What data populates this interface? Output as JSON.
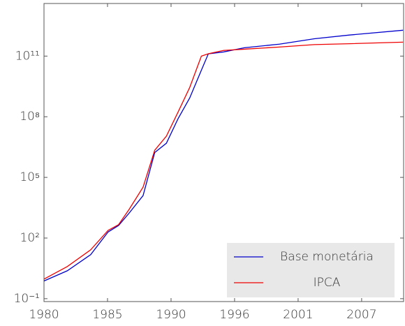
{
  "chart_data": {
    "type": "line",
    "x": [
      1980,
      1982,
      1984,
      1985.5,
      1986.4,
      1987.3,
      1988.5,
      1989.5,
      1990.5,
      1991.5,
      1992.5,
      1993.5,
      1994.1,
      1995.4,
      1997.2,
      2000.2,
      2003.2,
      2006.2,
      2010.8
    ],
    "series": [
      {
        "name": "Base monetária",
        "color": "#0000cc",
        "values": [
          0.75,
          2.4,
          15,
          200,
          420,
          1700,
          12600,
          1700000,
          4900000,
          80000000,
          850000000,
          20000000000,
          130000000000,
          160000000000,
          260000000000,
          390000000000,
          720000000000,
          1100000000000,
          1900000000000
        ]
      },
      {
        "name": "IPCA",
        "color": "#ee0000",
        "values": [
          0.93,
          3.9,
          26,
          240,
          460,
          2600,
          33000,
          2200000,
          11000000,
          170000000,
          2800000000,
          100000000000,
          130000000000,
          190000000000,
          220000000000,
          280000000000,
          370000000000,
          410000000000,
          490000000000
        ]
      }
    ],
    "xlim": [
      1980,
      2010.85
    ],
    "xticks": [
      {
        "value": 1980,
        "label": "1980"
      },
      {
        "value": 1985.45,
        "label": "1985"
      },
      {
        "value": 1990.9,
        "label": "1990"
      },
      {
        "value": 1996.35,
        "label": "1996"
      },
      {
        "value": 2001.8,
        "label": "2001"
      },
      {
        "value": 2007.25,
        "label": "2007"
      }
    ],
    "ylim": [
      0.072,
      40000000000000
    ],
    "yticks": [
      {
        "value": 0.1,
        "label": "10⁻¹"
      },
      {
        "value": 100,
        "label": "10²"
      },
      {
        "value": 100000,
        "label": "10⁵"
      },
      {
        "value": 100000000,
        "label": "10⁸"
      },
      {
        "value": 100000000000,
        "label": "10¹¹"
      }
    ],
    "ylog": true,
    "legend": "lower right"
  }
}
